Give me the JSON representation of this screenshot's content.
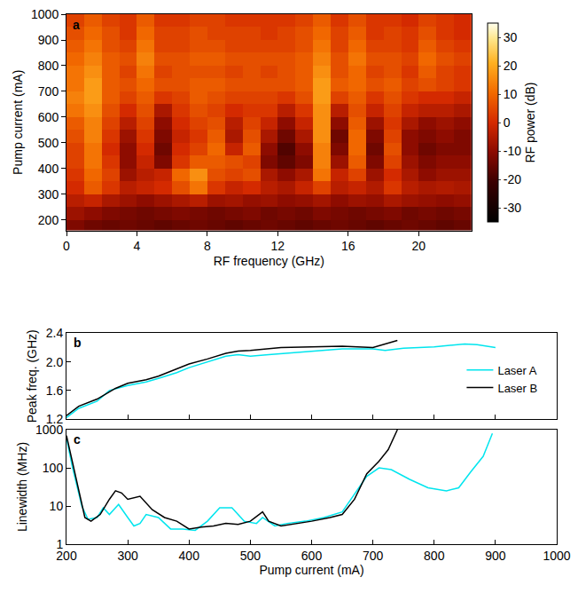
{
  "chart_data": [
    {
      "type": "heatmap",
      "title": "a",
      "x_label": "RF frequency (GHz)",
      "y_label": "Pump current (mA)",
      "z_label": "RF power (dB)",
      "x": [
        0.5,
        1.5,
        2.5,
        3.5,
        4.5,
        5.5,
        6.5,
        7.5,
        8.5,
        9.5,
        10.5,
        11.5,
        12.5,
        13.5,
        14.5,
        15.5,
        16.5,
        17.5,
        18.5,
        19.5,
        20.5,
        21.5,
        22.5
      ],
      "y": [
        175,
        225,
        275,
        325,
        375,
        425,
        475,
        525,
        575,
        625,
        675,
        725,
        775,
        825,
        875,
        925,
        975
      ],
      "cells": [
        [
          -12,
          -14,
          -15,
          -14,
          -15,
          -16,
          -15,
          -14,
          -15,
          -16,
          -15,
          -14,
          -15,
          -16,
          -15,
          -14,
          -15,
          -16,
          -15,
          -14,
          -15,
          -16,
          -15
        ],
        [
          -8,
          -10,
          -12,
          -13,
          -14,
          -13,
          -12,
          -13,
          -14,
          -13,
          -12,
          -14,
          -13,
          -14,
          -12,
          -13,
          -14,
          -13,
          -12,
          -14,
          -13,
          -14,
          -13
        ],
        [
          -4,
          -2,
          -6,
          -8,
          -10,
          -8,
          -6,
          -4,
          -8,
          -7,
          -9,
          -8,
          -10,
          -9,
          -7,
          -10,
          -8,
          -9,
          -6,
          -8,
          -9,
          -10,
          -9
        ],
        [
          0,
          8,
          2,
          -4,
          -2,
          0,
          6,
          12,
          2,
          -2,
          0,
          -4,
          -6,
          -2,
          4,
          -4,
          -2,
          -5,
          2,
          -4,
          -6,
          -5,
          -6
        ],
        [
          2,
          10,
          4,
          -8,
          -4,
          -2,
          10,
          16,
          6,
          4,
          6,
          -6,
          -10,
          -6,
          12,
          -2,
          4,
          -8,
          0,
          -6,
          -10,
          -8,
          -8
        ],
        [
          4,
          12,
          2,
          -10,
          -2,
          -12,
          2,
          8,
          8,
          6,
          4,
          -12,
          -16,
          -12,
          14,
          -8,
          8,
          -12,
          4,
          -8,
          -12,
          -10,
          -10
        ],
        [
          4,
          12,
          0,
          -10,
          0,
          -14,
          0,
          4,
          10,
          -2,
          8,
          -10,
          -18,
          -10,
          14,
          -12,
          10,
          -14,
          6,
          -10,
          -14,
          -12,
          -12
        ],
        [
          6,
          14,
          2,
          -8,
          2,
          -12,
          -2,
          2,
          8,
          -6,
          6,
          -6,
          -14,
          -6,
          16,
          -14,
          10,
          -12,
          4,
          -10,
          -12,
          -10,
          -12
        ],
        [
          8,
          14,
          4,
          -4,
          4,
          -10,
          0,
          4,
          6,
          -4,
          4,
          -2,
          -10,
          -2,
          16,
          -10,
          8,
          -8,
          2,
          -6,
          -10,
          -8,
          -10
        ],
        [
          12,
          16,
          6,
          0,
          6,
          -6,
          2,
          6,
          4,
          0,
          2,
          2,
          -4,
          2,
          16,
          -4,
          6,
          -2,
          4,
          -2,
          -4,
          -4,
          -6
        ],
        [
          14,
          18,
          8,
          4,
          8,
          2,
          4,
          8,
          6,
          4,
          4,
          4,
          2,
          6,
          18,
          4,
          8,
          2,
          6,
          2,
          0,
          0,
          -2
        ],
        [
          12,
          18,
          8,
          6,
          10,
          6,
          6,
          8,
          8,
          6,
          6,
          6,
          6,
          8,
          18,
          8,
          10,
          6,
          8,
          4,
          6,
          4,
          2
        ],
        [
          12,
          16,
          8,
          4,
          12,
          4,
          6,
          6,
          6,
          4,
          6,
          4,
          6,
          8,
          16,
          6,
          10,
          4,
          6,
          2,
          8,
          4,
          2
        ],
        [
          10,
          14,
          8,
          6,
          14,
          6,
          6,
          8,
          8,
          6,
          6,
          6,
          6,
          8,
          14,
          6,
          12,
          6,
          6,
          4,
          10,
          6,
          4
        ],
        [
          8,
          12,
          6,
          4,
          12,
          4,
          4,
          6,
          6,
          4,
          4,
          4,
          4,
          6,
          12,
          4,
          10,
          4,
          4,
          2,
          8,
          4,
          2
        ],
        [
          6,
          10,
          6,
          2,
          10,
          4,
          4,
          6,
          4,
          4,
          4,
          2,
          4,
          6,
          10,
          4,
          8,
          2,
          4,
          2,
          6,
          2,
          0
        ],
        [
          4,
          8,
          4,
          2,
          8,
          2,
          2,
          4,
          4,
          2,
          2,
          2,
          2,
          4,
          8,
          2,
          6,
          2,
          2,
          0,
          4,
          2,
          0
        ]
      ],
      "xlim": [
        0,
        23
      ],
      "xticks": [
        0,
        4,
        8,
        12,
        16,
        20
      ],
      "ylim": [
        160,
        1000
      ],
      "yticks": [
        200,
        300,
        400,
        500,
        600,
        700,
        800,
        900,
        1000
      ],
      "zlim": [
        -35,
        35
      ],
      "zticks": [
        -30,
        -20,
        -10,
        0,
        10,
        20,
        30
      ],
      "grid": false
    },
    {
      "type": "line",
      "title": "b",
      "y_label": "Peak freq. (GHz)",
      "series": [
        {
          "name": "Laser A",
          "color": "#00e5ee",
          "x": [
            200,
            220,
            250,
            270,
            300,
            330,
            350,
            380,
            400,
            430,
            460,
            480,
            500,
            530,
            560,
            600,
            650,
            700,
            720,
            750,
            800,
            850,
            870,
            900
          ],
          "values": [
            1.22,
            1.35,
            1.45,
            1.6,
            1.67,
            1.72,
            1.77,
            1.85,
            1.92,
            2.0,
            2.08,
            2.1,
            2.08,
            2.1,
            2.12,
            2.14,
            2.18,
            2.18,
            2.16,
            2.19,
            2.21,
            2.25,
            2.24,
            2.2
          ]
        },
        {
          "name": "Laser B",
          "color": "#000000",
          "x": [
            200,
            220,
            250,
            280,
            300,
            330,
            350,
            380,
            400,
            430,
            460,
            480,
            500,
            550,
            600,
            650,
            700,
            720,
            740
          ],
          "values": [
            1.25,
            1.38,
            1.48,
            1.63,
            1.7,
            1.75,
            1.8,
            1.9,
            1.97,
            2.04,
            2.12,
            2.15,
            2.16,
            2.2,
            2.21,
            2.22,
            2.2,
            2.25,
            2.3
          ]
        }
      ],
      "xlim": [
        200,
        1000
      ],
      "xticks": [
        200,
        300,
        400,
        500,
        600,
        700,
        800,
        900,
        1000
      ],
      "ylim": [
        1.2,
        2.4
      ],
      "yticks": [
        1.2,
        1.6,
        {
          "value": 2,
          "label": "2.0"
        },
        2.4
      ],
      "tick_labels": "y",
      "legend": "right",
      "grid": false
    },
    {
      "type": "line",
      "title": "c",
      "x_label": "Pump current (mA)",
      "y_label": "Linewidth (MHz)",
      "series": [
        {
          "name": "Laser A",
          "color": "#00e5ee",
          "x": [
            200,
            210,
            225,
            235,
            250,
            260,
            270,
            285,
            300,
            310,
            320,
            330,
            350,
            370,
            390,
            410,
            430,
            450,
            470,
            490,
            510,
            520,
            540,
            560,
            590,
            620,
            650,
            670,
            690,
            710,
            730,
            760,
            790,
            820,
            840,
            860,
            880,
            895
          ],
          "values": [
            600,
            100,
            10,
            4.5,
            5,
            9,
            6,
            11,
            5,
            3,
            3.5,
            6,
            5,
            2.5,
            2.5,
            2.3,
            4,
            9,
            9,
            4,
            3.5,
            5,
            3,
            3.5,
            4,
            5,
            7,
            20,
            60,
            100,
            90,
            50,
            30,
            25,
            30,
            80,
            200,
            800
          ]
        },
        {
          "name": "Laser B",
          "color": "#000000",
          "x": [
            200,
            215,
            230,
            240,
            255,
            270,
            280,
            290,
            300,
            320,
            340,
            360,
            380,
            400,
            420,
            440,
            460,
            480,
            500,
            520,
            530,
            550,
            580,
            600,
            630,
            650,
            670,
            690,
            710,
            725,
            740
          ],
          "values": [
            700,
            60,
            5,
            4,
            6,
            15,
            25,
            22,
            15,
            18,
            8,
            5,
            4,
            2.5,
            2.8,
            3,
            3.5,
            3.3,
            4,
            7,
            4,
            3,
            3.5,
            4,
            5,
            6,
            15,
            70,
            150,
            300,
            1000
          ]
        }
      ],
      "xlim": [
        200,
        1000
      ],
      "xticks": [
        200,
        300,
        400,
        500,
        600,
        700,
        800,
        900,
        1000
      ],
      "ylim": [
        1,
        1000
      ],
      "yticks": [
        1,
        10,
        100,
        1000
      ],
      "log": "y",
      "grid": false
    }
  ]
}
